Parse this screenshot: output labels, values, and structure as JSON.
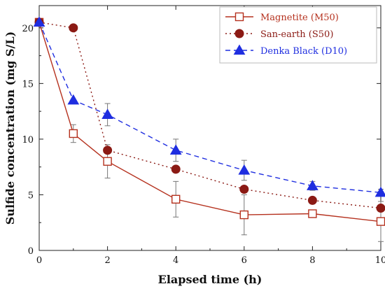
{
  "chart_data": {
    "type": "line",
    "xlabel": "Elapsed time (h)",
    "ylabel": "Sulfide concentration (mg S/L)",
    "xlim": [
      0,
      10
    ],
    "ylim": [
      0,
      22
    ],
    "x_ticks": [
      0,
      2,
      4,
      6,
      8,
      10
    ],
    "y_ticks": [
      0,
      5,
      10,
      15,
      20
    ],
    "grid": false,
    "legend_position": "top-right",
    "series": [
      {
        "name": "Magnetite (M50)",
        "color": "#b5311e",
        "line_style": "solid",
        "marker": "open-square",
        "x": [
          0,
          1,
          2,
          4,
          6,
          8,
          10
        ],
        "y": [
          20.5,
          10.5,
          8.0,
          4.6,
          3.2,
          3.3,
          2.6
        ],
        "error": [
          0,
          0.8,
          1.5,
          1.6,
          1.8,
          0.2,
          1.8
        ]
      },
      {
        "name": "San-earth (S50)",
        "color": "#8b1a14",
        "line_style": "dotted",
        "marker": "filled-circle",
        "x": [
          0,
          1,
          2,
          4,
          6,
          8,
          10
        ],
        "y": [
          20.5,
          20.0,
          9.0,
          7.3,
          5.5,
          4.5,
          3.8
        ],
        "error": [
          0,
          0,
          0,
          0,
          0,
          0,
          0
        ]
      },
      {
        "name": "Denka Black (D10)",
        "color": "#1f2ee0",
        "line_style": "dashed",
        "marker": "filled-triangle",
        "x": [
          0,
          1,
          2,
          4,
          6,
          8,
          10
        ],
        "y": [
          20.5,
          13.5,
          12.2,
          9.0,
          7.2,
          5.8,
          5.2
        ],
        "error": [
          0,
          0,
          1.0,
          1.0,
          0.9,
          0.4,
          0.3
        ]
      }
    ]
  }
}
